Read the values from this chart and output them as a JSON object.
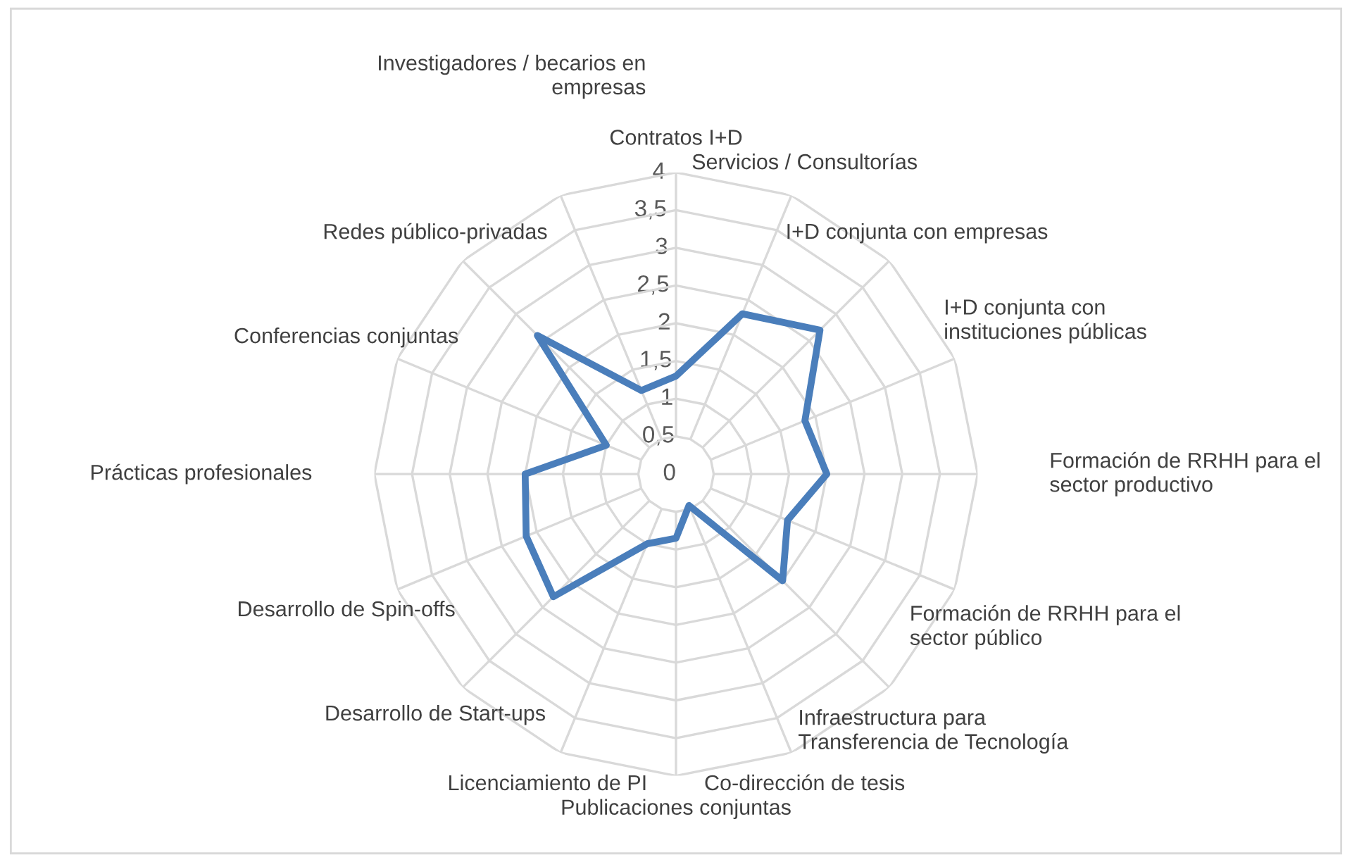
{
  "chart_data": {
    "type": "radar",
    "categories": [
      "Contratos I+D",
      "Servicios / Consultorías",
      "I+D conjunta con empresas",
      "I+D conjunta con\ninstituciones públicas",
      "Formación de RRHH para el\nsector productivo",
      "Formación de RRHH para el\nsector público",
      "Infraestructura para\nTransferencia de Tecnología",
      "Co-dirección de tesis",
      "Publicaciones conjuntas",
      "Licenciamiento de PI",
      "Desarrollo de Start-ups",
      "Desarrollo de Spin-offs",
      "Prácticas profesionales",
      "Conferencias conjuntas",
      "Redes público-privadas",
      "Investigadores / becarios en\nempresas"
    ],
    "series": [
      {
        "color": "#4a7ebb",
        "values": [
          1.3,
          2.3,
          2.7,
          1.85,
          2.0,
          1.6,
          2.0,
          0.45,
          0.85,
          1.0,
          2.3,
          2.15,
          2.0,
          1.0,
          2.6,
          1.2
        ]
      }
    ],
    "ylim": [
      0,
      4
    ],
    "yticks": [
      0,
      {
        "value": 0.5,
        "label": "0,5"
      },
      1,
      {
        "value": 1.5,
        "label": "1,5"
      },
      2,
      {
        "value": 2.5,
        "label": "2,5"
      },
      3,
      {
        "value": 3.5,
        "label": "3,5"
      },
      4
    ],
    "grid": true,
    "marker": "none",
    "line_style": "solid"
  }
}
